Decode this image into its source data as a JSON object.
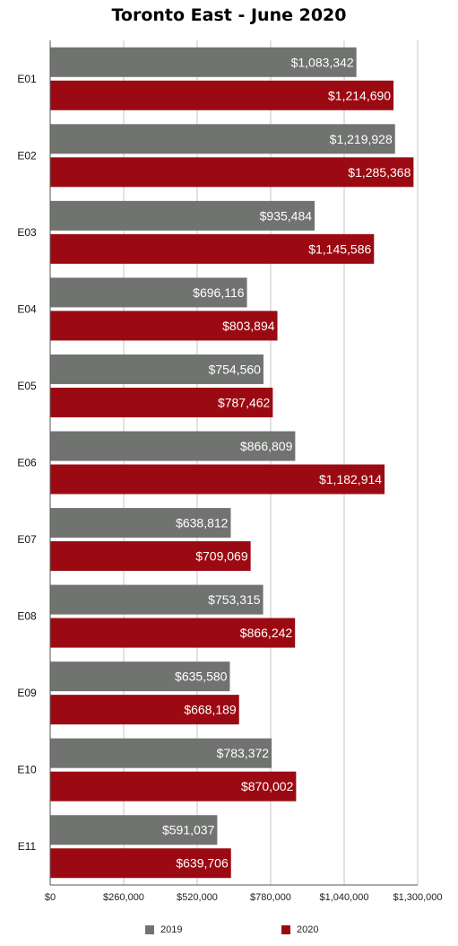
{
  "chart_data": {
    "type": "bar",
    "orientation": "horizontal",
    "title": "Toronto East - June 2020",
    "xlabel": "",
    "ylabel": "",
    "xlim": [
      0,
      1300000
    ],
    "x_ticks": [
      0,
      260000,
      520000,
      780000,
      1040000,
      1300000
    ],
    "x_tick_labels": [
      "$0",
      "$260,000",
      "$520,000",
      "$780,000",
      "$1,040,000",
      "$1,300,000"
    ],
    "grid": true,
    "legend_position": "bottom",
    "categories": [
      "E01",
      "E02",
      "E03",
      "E04",
      "E05",
      "E06",
      "E07",
      "E08",
      "E09",
      "E10",
      "E11"
    ],
    "series": [
      {
        "name": "2019",
        "color": "#707370",
        "values": [
          1083342,
          1219928,
          935484,
          696116,
          754560,
          866809,
          638812,
          753315,
          635580,
          783372,
          591037
        ],
        "labels": [
          "$1,083,342",
          "$1,219,928",
          "$935,484",
          "$696,116",
          "$754,560",
          "$866,809",
          "$638,812",
          "$753,315",
          "$635,580",
          "$783,372",
          "$591,037"
        ]
      },
      {
        "name": "2020",
        "color": "#9b0a12",
        "values": [
          1214690,
          1285368,
          1145586,
          803894,
          787462,
          1182914,
          709069,
          866242,
          668189,
          870002,
          639706
        ],
        "labels": [
          "$1,214,690",
          "$1,285,368",
          "$1,145,586",
          "$803,894",
          "$787,462",
          "$1,182,914",
          "$709,069",
          "$866,242",
          "$668,189",
          "$870,002",
          "$639,706"
        ]
      }
    ]
  }
}
